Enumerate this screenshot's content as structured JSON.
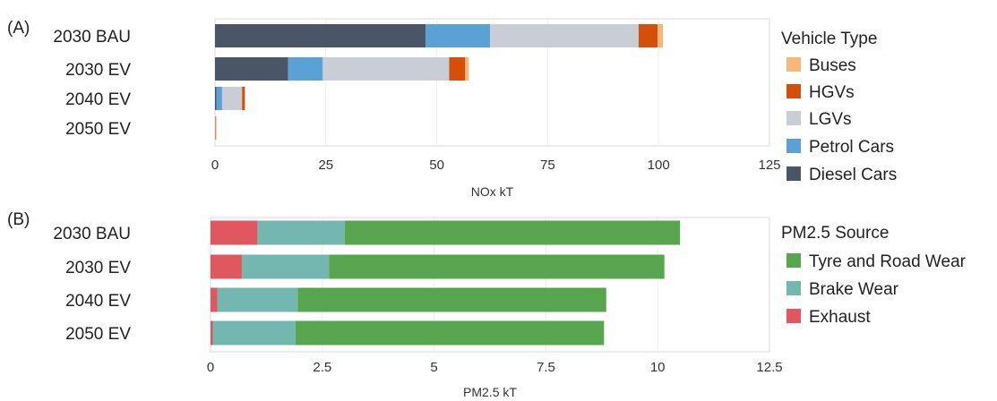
{
  "chart_data": [
    {
      "type": "bar",
      "orientation": "horizontal",
      "stacked": true,
      "panel_label": "(A)",
      "categories": [
        "2030 BAU",
        "2030 EV",
        "2040 EV",
        "2050 EV"
      ],
      "series": [
        {
          "name": "Diesel Cars",
          "color": "#4a5568",
          "values": [
            47.5,
            16.5,
            0.3,
            0.0
          ]
        },
        {
          "name": "Petrol Cars",
          "color": "#5aa2d6",
          "values": [
            14.5,
            7.8,
            1.3,
            0.0
          ]
        },
        {
          "name": "LGVs",
          "color": "#c8cdd6",
          "values": [
            33.5,
            28.5,
            4.5,
            0.1
          ]
        },
        {
          "name": "HGVs",
          "color": "#d4500a",
          "values": [
            4.3,
            3.6,
            0.6,
            0.1
          ]
        },
        {
          "name": "Buses",
          "color": "#f7b77a",
          "values": [
            1.2,
            0.8,
            0.1,
            0.0
          ]
        }
      ],
      "legend_order": [
        "Buses",
        "HGVs",
        "LGVs",
        "Petrol Cars",
        "Diesel Cars"
      ],
      "legend_title": "Vehicle Type",
      "xlabel": "NOx kT",
      "xlim": [
        0,
        125
      ],
      "xticks": [
        "0",
        "25",
        "50",
        "75",
        "100",
        "125"
      ],
      "xtick_values": [
        0,
        25,
        50,
        75,
        100,
        125
      ],
      "grid": true,
      "legend_position": "right"
    },
    {
      "type": "bar",
      "orientation": "horizontal",
      "stacked": true,
      "panel_label": "(B)",
      "categories": [
        "2030 BAU",
        "2030 EV",
        "2040 EV",
        "2050 EV"
      ],
      "series": [
        {
          "name": "Exhaust",
          "color": "#e05760",
          "values": [
            1.05,
            0.7,
            0.15,
            0.05
          ]
        },
        {
          "name": "Brake Wear",
          "color": "#74b7b1",
          "values": [
            1.95,
            1.95,
            1.8,
            1.85
          ]
        },
        {
          "name": "Tyre and Road Wear",
          "color": "#58a54f",
          "values": [
            7.5,
            7.5,
            6.9,
            6.9
          ]
        }
      ],
      "legend_order": [
        "Tyre and Road Wear",
        "Brake Wear",
        "Exhaust"
      ],
      "legend_title": "PM2.5 Source",
      "xlabel": "PM2.5 kT",
      "xlim": [
        0,
        12.5
      ],
      "xticks": [
        "0",
        "2.5",
        "5",
        "7.5",
        "10",
        "12.5"
      ],
      "xtick_values": [
        0,
        2.5,
        5,
        7.5,
        10,
        12.5
      ],
      "grid": true,
      "legend_position": "right"
    }
  ]
}
